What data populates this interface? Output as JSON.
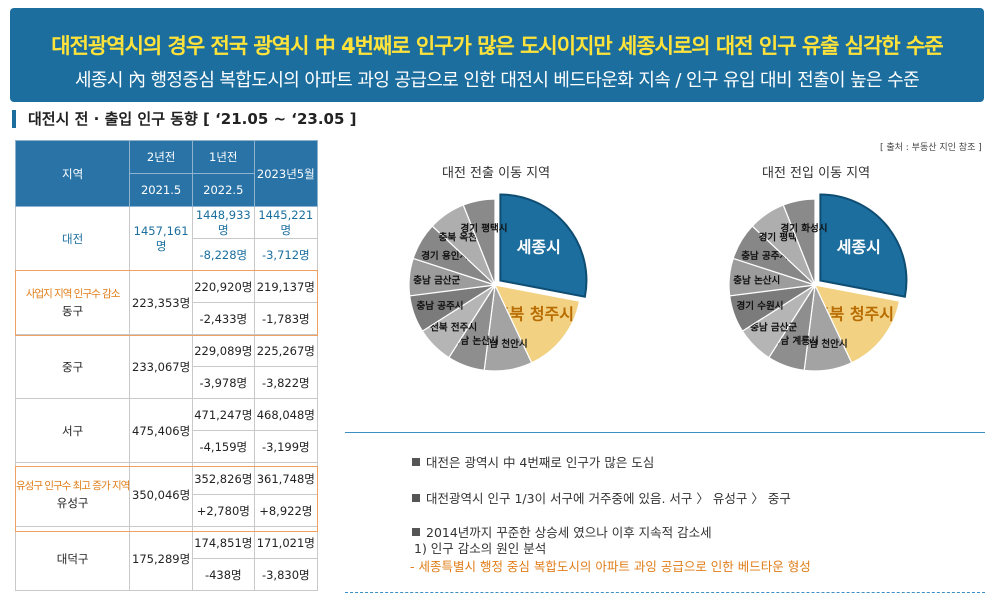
{
  "banner": {
    "title": "대전광역시의 경우 전국 광역시 中 4번째로 인구가 많은 도시이지만 세종시로의 대전 인구 유출 심각한 수준",
    "subtitle": "세종시 內 행정중심 복합도시의 아파트 과잉 공급으로 인한 대전시 베드타운화 지속 / 인구 유입 대비 전출이 높은 수준"
  },
  "section_title": "대전시 전 · 출입 인구 동향 [ ‘21.05 ~ ‘23.05 ]",
  "source": "[ 출처 : 부동산 지인 참조 ]",
  "table": {
    "header": {
      "region": "지역",
      "two_years": "2년전",
      "two_years_date": "2021.5",
      "one_year": "1년전",
      "one_year_date": "2022.5",
      "current": "2023년5월"
    },
    "rows": [
      {
        "region": "대전",
        "note": "",
        "v2021": "1457,161명",
        "v2022": "1448,933명",
        "v2023": "1445,221명",
        "d2022": "-8,228명",
        "d2023": "-3,712명"
      },
      {
        "region": "동구",
        "note": "사업지 지역 인구수 감소",
        "v2021": "223,353명",
        "v2022": "220,920명",
        "v2023": "219,137명",
        "d2022": "-2,433명",
        "d2023": "-1,783명"
      },
      {
        "region": "중구",
        "note": "",
        "v2021": "233,067명",
        "v2022": "229,089명",
        "v2023": "225,267명",
        "d2022": "-3,978명",
        "d2023": "-3,822명"
      },
      {
        "region": "서구",
        "note": "",
        "v2021": "475,406명",
        "v2022": "471,247명",
        "v2023": "468,048명",
        "d2022": "-4,159명",
        "d2023": "-3,199명"
      },
      {
        "region": "유성구",
        "note": "유성구 인구수 최고 증가 지역",
        "v2021": "350,046명",
        "v2022": "352,826명",
        "v2023": "361,748명",
        "d2022": "+2,780명",
        "d2023": "+8,922명"
      },
      {
        "region": "대덕구",
        "note": "",
        "v2021": "175,289명",
        "v2022": "174,851명",
        "v2023": "171,021명",
        "d2022": "-438명",
        "d2023": "-3,830명"
      }
    ]
  },
  "pies": [
    {
      "title": "대전 전출 이동 지역",
      "main": {
        "label": "세종시",
        "value": 28,
        "color": "#1b6e9e"
      },
      "second": {
        "label": "충북 청주시",
        "value": 15,
        "color": "#f2d282"
      },
      "others": [
        {
          "label": "충남 천안시",
          "value": 9
        },
        {
          "label": "충남 논산시",
          "value": 7
        },
        {
          "label": "전북 전주시",
          "value": 7
        },
        {
          "label": "충남 공주시",
          "value": 7
        },
        {
          "label": "충남 금산군",
          "value": 7
        },
        {
          "label": "경기 용인시",
          "value": 7
        },
        {
          "label": "충북 옥천군",
          "value": 7
        },
        {
          "label": "경기 평택시",
          "value": 6
        }
      ]
    },
    {
      "title": "대전 전입 이동 지역",
      "main": {
        "label": "세종시",
        "value": 28,
        "color": "#1b6e9e"
      },
      "second": {
        "label": "충북 청주시",
        "value": 15,
        "color": "#f2d282"
      },
      "others": [
        {
          "label": "충남 천안시",
          "value": 9
        },
        {
          "label": "충남 계룡시",
          "value": 7
        },
        {
          "label": "충남 금산군",
          "value": 7
        },
        {
          "label": "경기 수원시",
          "value": 7
        },
        {
          "label": "충남 논산시",
          "value": 7
        },
        {
          "label": "충남 공주시",
          "value": 7
        },
        {
          "label": "경기 평택시",
          "value": 7
        },
        {
          "label": "경기 화성시",
          "value": 6
        }
      ]
    }
  ],
  "gray_shades": [
    "#a3a3a3",
    "#8e8e8e",
    "#b5b5b5",
    "#7b7b7b",
    "#9c9c9c",
    "#878787",
    "#aeaeae",
    "#8a8a8a"
  ],
  "bullets": {
    "b1": "대전은 광역시 中 4번째로 인구가 많은 도심",
    "b2": "대전광역시 인구 1/3이 서구에 거주중에 있음. 서구 〉 유성구 〉 중구",
    "b3": "2014년까지 꾸준한 상승세 였으나 이후 지속적 감소세",
    "b3_sub": "1) 인구 감소의 원인 분석",
    "b3_sub2": "-  세종특별시 행정 중심 복합도시의 아파트 과잉 공급으로 인한 베드타운 형성"
  }
}
